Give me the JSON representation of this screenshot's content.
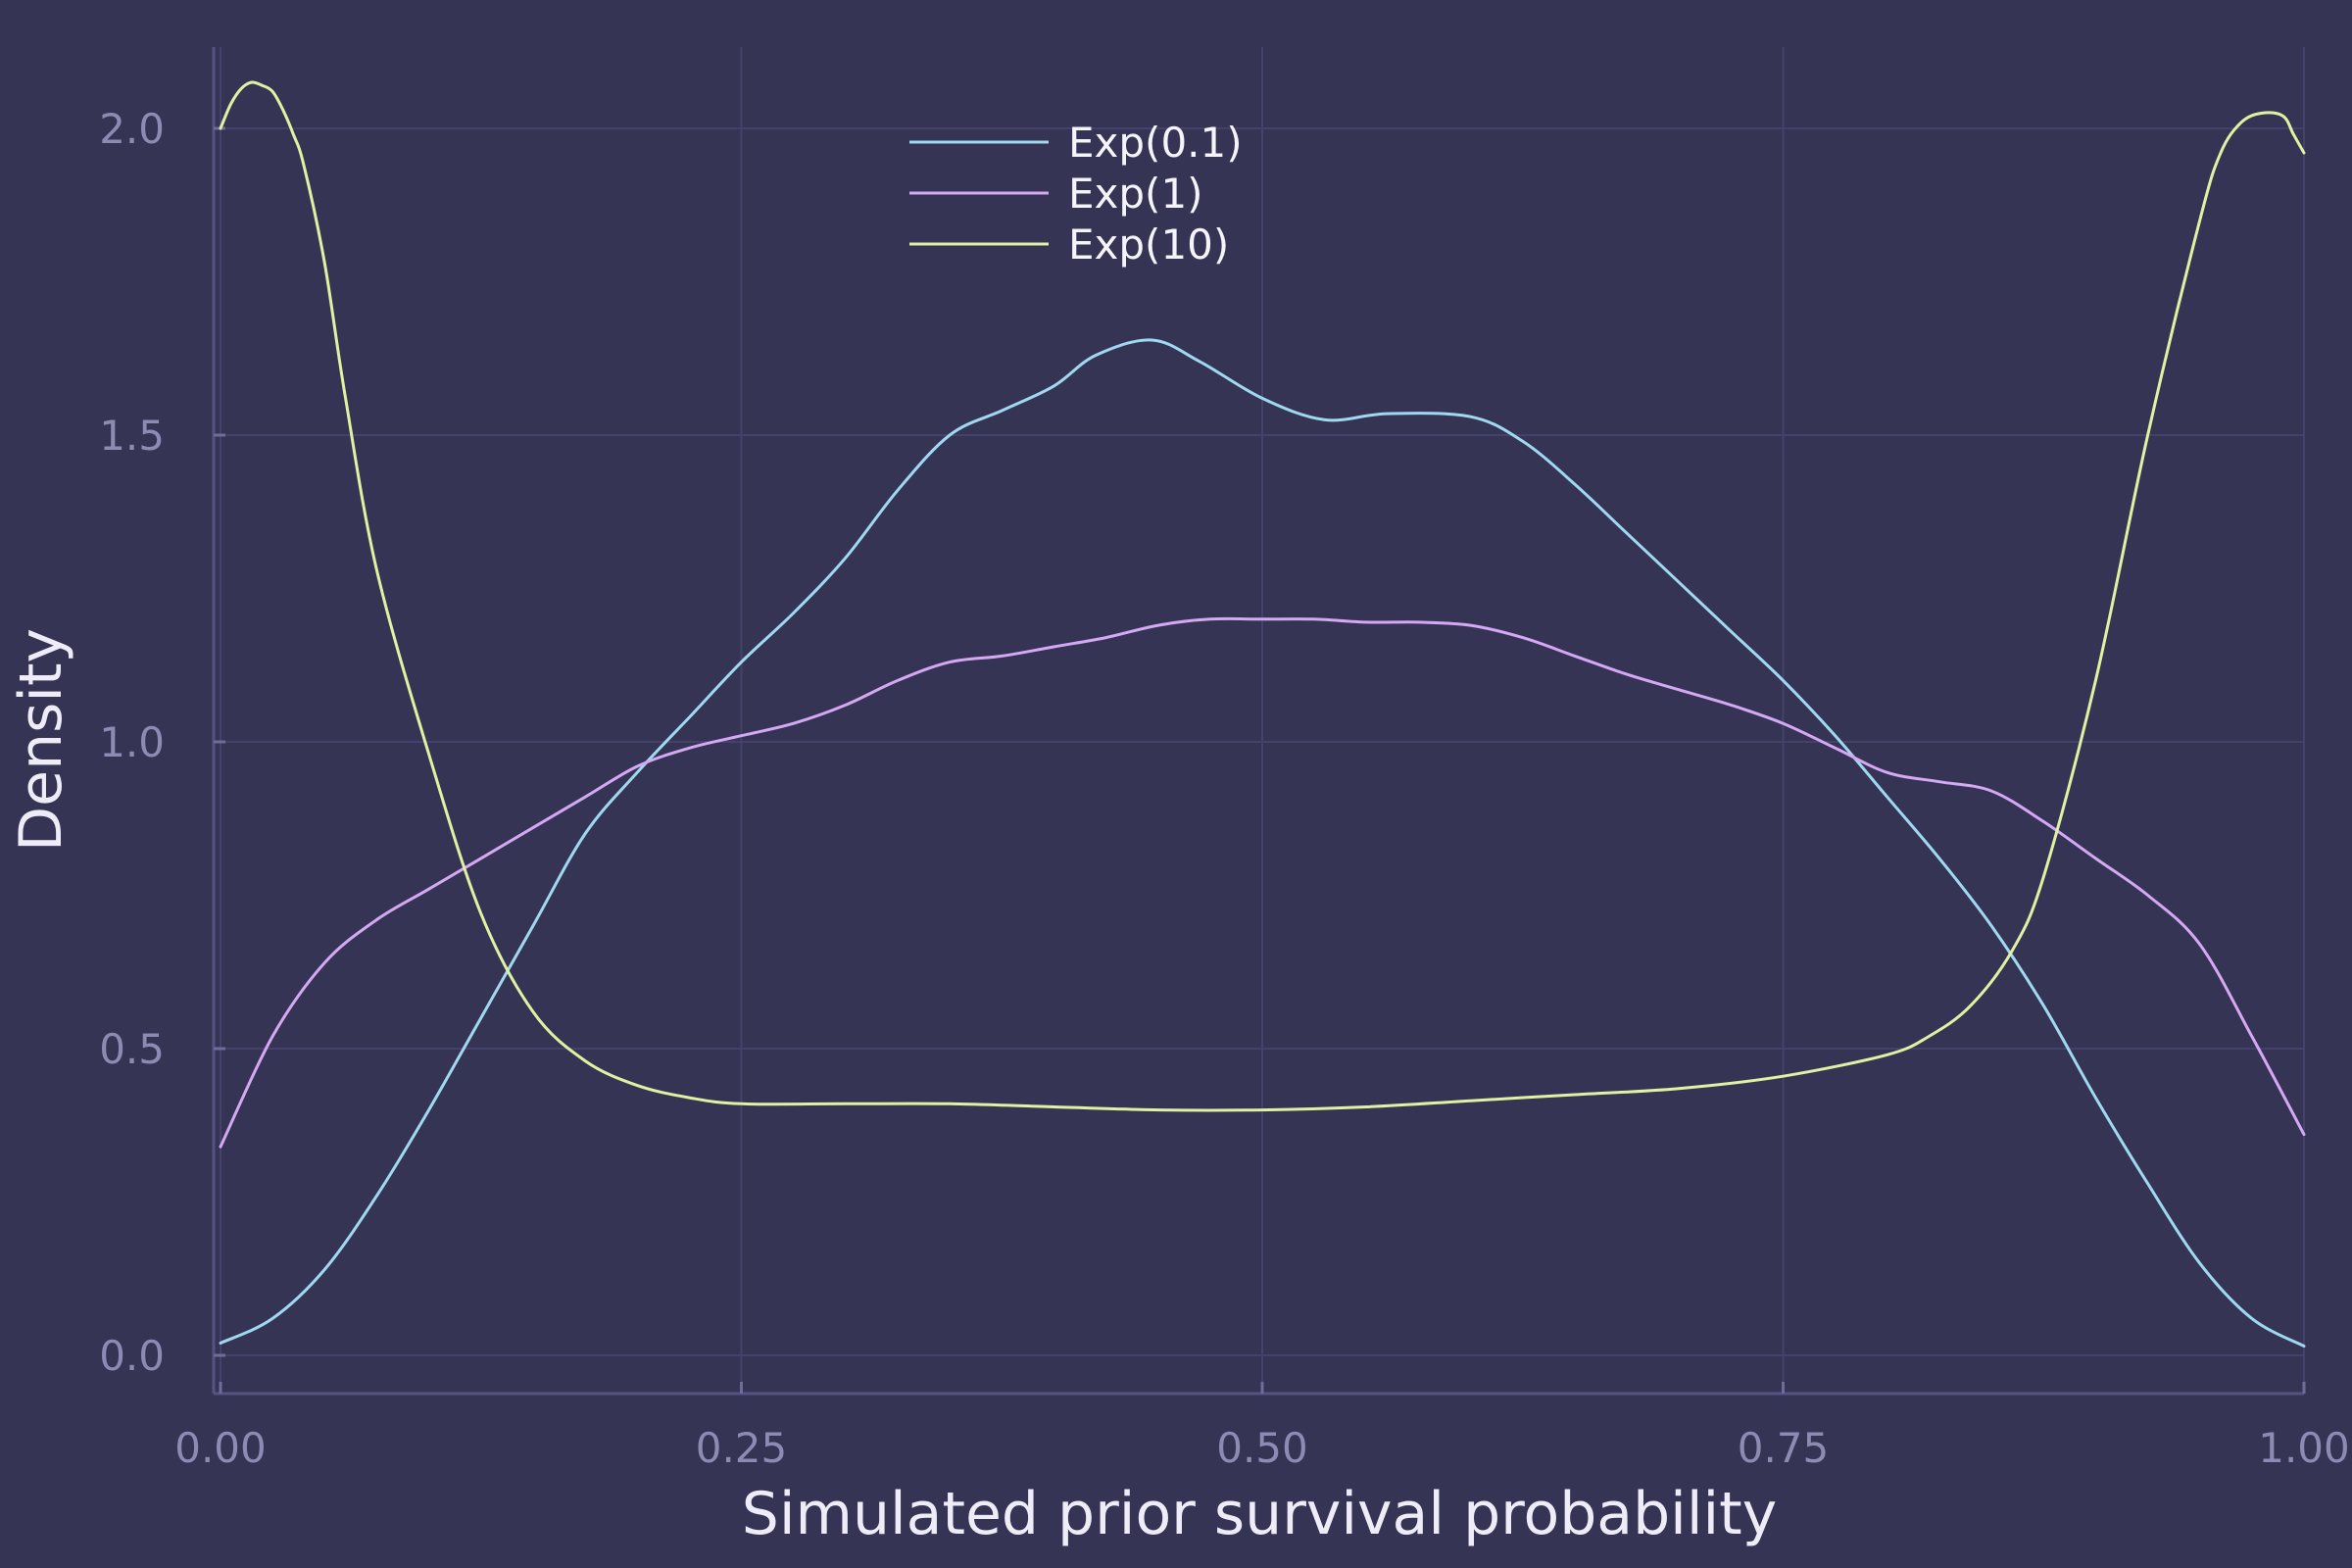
{
  "chart_data": {
    "type": "line",
    "title": "",
    "xlabel": "Simulated prior survival probability",
    "ylabel": "Density",
    "xlim": [
      0,
      1
    ],
    "ylim": [
      0,
      2.1
    ],
    "xticks": [
      0,
      0.25,
      0.5,
      0.75,
      1
    ],
    "xtick_labels": [
      "0.00",
      "0.25",
      "0.50",
      "0.75",
      "1.00"
    ],
    "yticks": [
      0,
      0.5,
      1,
      1.5,
      2
    ],
    "ytick_labels": [
      "0.0",
      "0.5",
      "1.0",
      "1.5",
      "2.0"
    ],
    "grid": true,
    "legend_position": "top-center",
    "series": [
      {
        "name": "Exp(0.1)",
        "color": "#9fd8ef",
        "x": [
          0,
          0.025,
          0.05,
          0.075,
          0.1,
          0.125,
          0.15,
          0.175,
          0.2,
          0.225,
          0.25,
          0.275,
          0.3,
          0.325,
          0.35,
          0.375,
          0.4,
          0.42,
          0.447,
          0.47,
          0.5,
          0.53,
          0.56,
          0.6,
          0.625,
          0.65,
          0.675,
          0.7,
          0.725,
          0.75,
          0.775,
          0.8,
          0.825,
          0.85,
          0.875,
          0.9,
          0.925,
          0.95,
          0.975,
          1.0
        ],
        "y": [
          0.02,
          0.06,
          0.14,
          0.26,
          0.4,
          0.55,
          0.7,
          0.85,
          0.95,
          1.04,
          1.13,
          1.21,
          1.3,
          1.41,
          1.5,
          1.54,
          1.58,
          1.63,
          1.655,
          1.62,
          1.56,
          1.525,
          1.535,
          1.53,
          1.49,
          1.42,
          1.34,
          1.26,
          1.18,
          1.1,
          1.01,
          0.91,
          0.81,
          0.7,
          0.57,
          0.42,
          0.28,
          0.15,
          0.06,
          0.015
        ]
      },
      {
        "name": "Exp(1)",
        "color": "#d4a8f2",
        "x": [
          0,
          0.025,
          0.05,
          0.075,
          0.1,
          0.125,
          0.15,
          0.175,
          0.2,
          0.225,
          0.25,
          0.275,
          0.3,
          0.325,
          0.35,
          0.375,
          0.4,
          0.425,
          0.45,
          0.475,
          0.5,
          0.525,
          0.55,
          0.575,
          0.6,
          0.625,
          0.65,
          0.675,
          0.7,
          0.725,
          0.75,
          0.775,
          0.8,
          0.825,
          0.85,
          0.875,
          0.9,
          0.925,
          0.95,
          0.975,
          1.0
        ],
        "y": [
          0.34,
          0.52,
          0.64,
          0.71,
          0.76,
          0.81,
          0.86,
          0.91,
          0.96,
          0.99,
          1.01,
          1.03,
          1.06,
          1.1,
          1.13,
          1.14,
          1.155,
          1.17,
          1.19,
          1.2,
          1.2,
          1.2,
          1.195,
          1.195,
          1.19,
          1.17,
          1.14,
          1.11,
          1.085,
          1.06,
          1.03,
          0.99,
          0.95,
          0.935,
          0.92,
          0.87,
          0.81,
          0.75,
          0.67,
          0.52,
          0.36
        ]
      },
      {
        "name": "Exp(10)",
        "color": "#dff2a2",
        "x": [
          0,
          0.005,
          0.01,
          0.015,
          0.02,
          0.025,
          0.03,
          0.035,
          0.04,
          0.05,
          0.06,
          0.075,
          0.1,
          0.125,
          0.15,
          0.175,
          0.2,
          0.225,
          0.25,
          0.3,
          0.35,
          0.4,
          0.45,
          0.5,
          0.55,
          0.6,
          0.65,
          0.7,
          0.75,
          0.8,
          0.82,
          0.84,
          0.86,
          0.875,
          0.9,
          0.925,
          0.95,
          0.96,
          0.97,
          0.98,
          0.99,
          0.995,
          1.0
        ],
        "y": [
          2.0,
          2.04,
          2.065,
          2.075,
          2.07,
          2.06,
          2.03,
          1.99,
          1.94,
          1.78,
          1.56,
          1.28,
          0.98,
          0.72,
          0.56,
          0.48,
          0.44,
          0.42,
          0.41,
          0.41,
          0.41,
          0.405,
          0.4,
          0.4,
          0.405,
          0.415,
          0.425,
          0.435,
          0.455,
          0.49,
          0.52,
          0.57,
          0.66,
          0.78,
          1.1,
          1.5,
          1.85,
          1.96,
          2.01,
          2.025,
          2.02,
          1.99,
          1.96
        ]
      }
    ]
  }
}
